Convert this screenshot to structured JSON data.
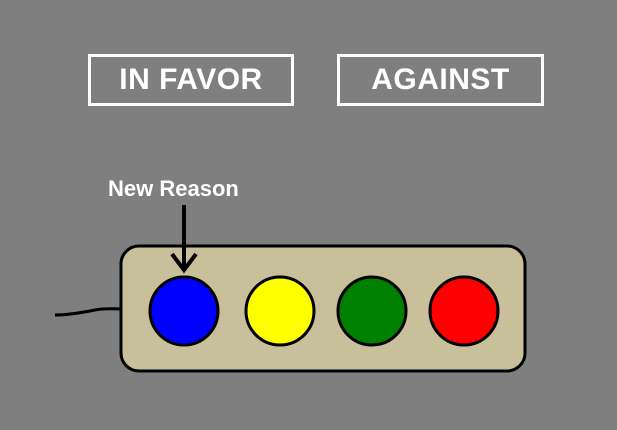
{
  "labels": {
    "in_favor": "IN FAVOR",
    "against": "AGAINST",
    "new_reason": "New Reason"
  },
  "device": {
    "panel_color": "#c8bf9b",
    "outline_color": "#000000",
    "lights": [
      {
        "name": "blue",
        "color": "#0000ff"
      },
      {
        "name": "yellow",
        "color": "#ffff00"
      },
      {
        "name": "green",
        "color": "#008000"
      },
      {
        "name": "red",
        "color": "#ff0000"
      }
    ]
  }
}
